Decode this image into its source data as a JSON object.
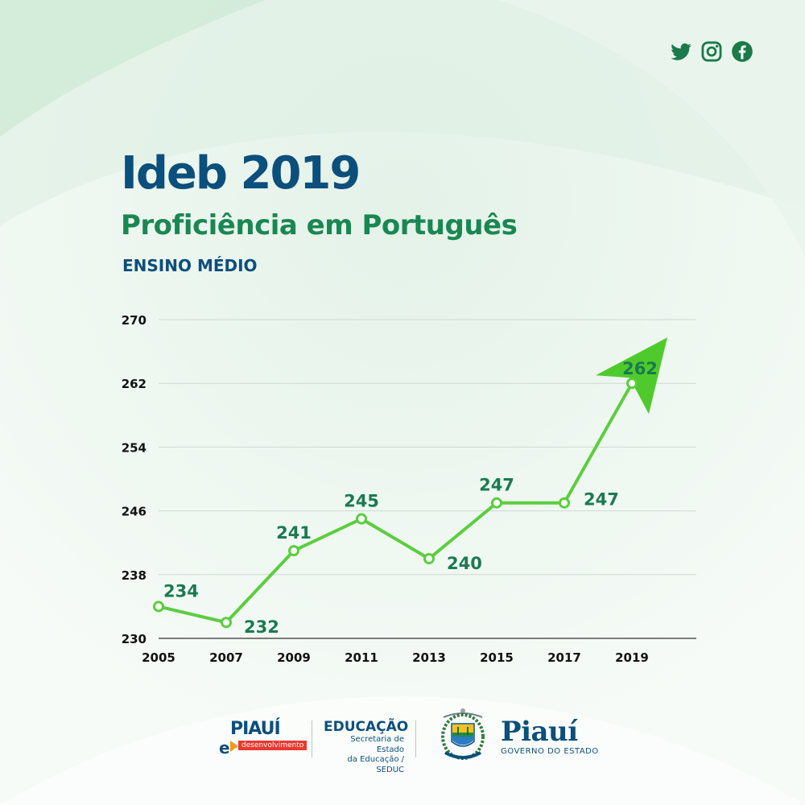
{
  "header": {
    "title": "Ideb 2019",
    "subtitle": "Proficiência em Português",
    "section": "ENSINO MÉDIO"
  },
  "social": {
    "icons": [
      "twitter-icon",
      "instagram-icon",
      "facebook-icon"
    ]
  },
  "colors": {
    "title": "#0b4f7c",
    "subtitle": "#1a8753",
    "line": "#5ccd3f",
    "label": "#1a7a50",
    "arrow": "#4fca2c",
    "grid": "#cfd8d2"
  },
  "chart_data": {
    "type": "line",
    "x": [
      "2005",
      "2007",
      "2009",
      "2011",
      "2013",
      "2015",
      "2017",
      "2019"
    ],
    "values": [
      234,
      232,
      241,
      245,
      240,
      247,
      247,
      262
    ],
    "labels": [
      "234",
      "232",
      "241",
      "245",
      "240",
      "247",
      "247",
      "262"
    ],
    "yticks": [
      "230",
      "238",
      "246",
      "254",
      "262",
      "270"
    ],
    "ylim": [
      230,
      270
    ],
    "grid": true,
    "legend": "none"
  },
  "footer": {
    "logo1_top": "PIAUÍ",
    "logo1_e": "e",
    "logo1_tag": "desenvolvimento",
    "edu_title": "EDUCAÇÃO",
    "edu_line1": "Secretaria de Estado",
    "edu_line2": "da Educação / SEDUC",
    "gov_title": "Piauí",
    "gov_sub": "GOVERNO DO ESTADO"
  }
}
